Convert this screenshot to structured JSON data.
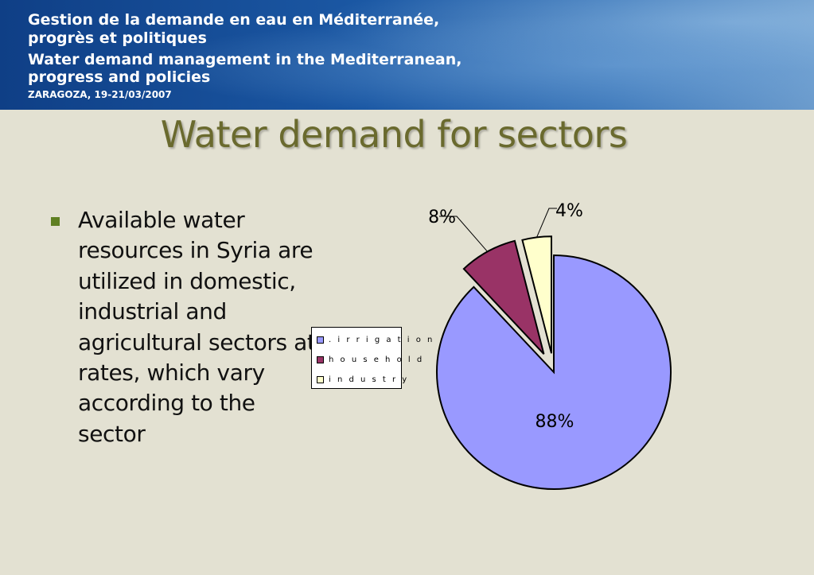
{
  "header": {
    "line1": "Gestion de la demande en eau en Méditerranée,",
    "line2": "progrès et politiques",
    "line3": "Water demand management in the Mediterranean,",
    "line4": "progress and policies",
    "line5": "ZARAGOZA, 19-21/03/2007"
  },
  "slide": {
    "title": "Water demand for sectors",
    "bullet": "Available water resources in Syria are utilized in domestic, industrial and agricultural sectors at rates, which vary according to the sector"
  },
  "chart_data": {
    "type": "pie",
    "categories": [
      ".irrigation",
      "household",
      "industry"
    ],
    "values": [
      88,
      8,
      4
    ],
    "labels": [
      "88%",
      "8%",
      "4%"
    ],
    "colors": [
      "#9999ff",
      "#993366",
      "#ffffcc"
    ],
    "exploded": true,
    "legend": "left"
  },
  "legend": {
    "items": [
      {
        "label": ". i r r i g a t i o n",
        "color": "#9999ff"
      },
      {
        "label": "h o u s e h o l d",
        "color": "#993366"
      },
      {
        "label": "i n d u s t r y",
        "color": "#ffffcc"
      }
    ]
  }
}
